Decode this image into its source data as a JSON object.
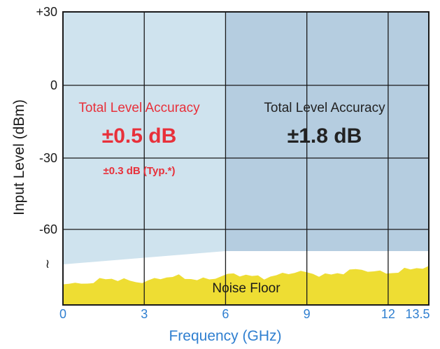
{
  "chart_data": {
    "type": "area",
    "xlabel": "Frequency (GHz)",
    "ylabel": "Input Level (dBm)",
    "xlim": [
      0,
      13.5
    ],
    "x_ticks": [
      "0",
      "3",
      "6",
      "9",
      "12",
      "13.5"
    ],
    "x_tick_values": [
      0,
      3,
      6,
      9,
      12,
      13.5
    ],
    "y_ticks": [
      "+30",
      "0",
      "-30",
      "-60"
    ],
    "y_tick_values": [
      30,
      0,
      -30,
      -60
    ],
    "y_break_symbol": "≀",
    "grid": true,
    "regions": [
      {
        "x_range": [
          0,
          6
        ],
        "label": "Total Level Accuracy",
        "value": "±0.5 dB",
        "typical": "±0.3 dB (Typ.*)",
        "color": "#cfe3ee",
        "text_color": "#e8303a"
      },
      {
        "x_range": [
          6,
          13.5
        ],
        "label": "Total Level Accuracy",
        "value": "±1.8 dB",
        "color": "#b5cde0",
        "text_color": "#222222"
      }
    ],
    "noise_floor": {
      "label": "Noise Floor",
      "color": "#eedd33"
    }
  }
}
